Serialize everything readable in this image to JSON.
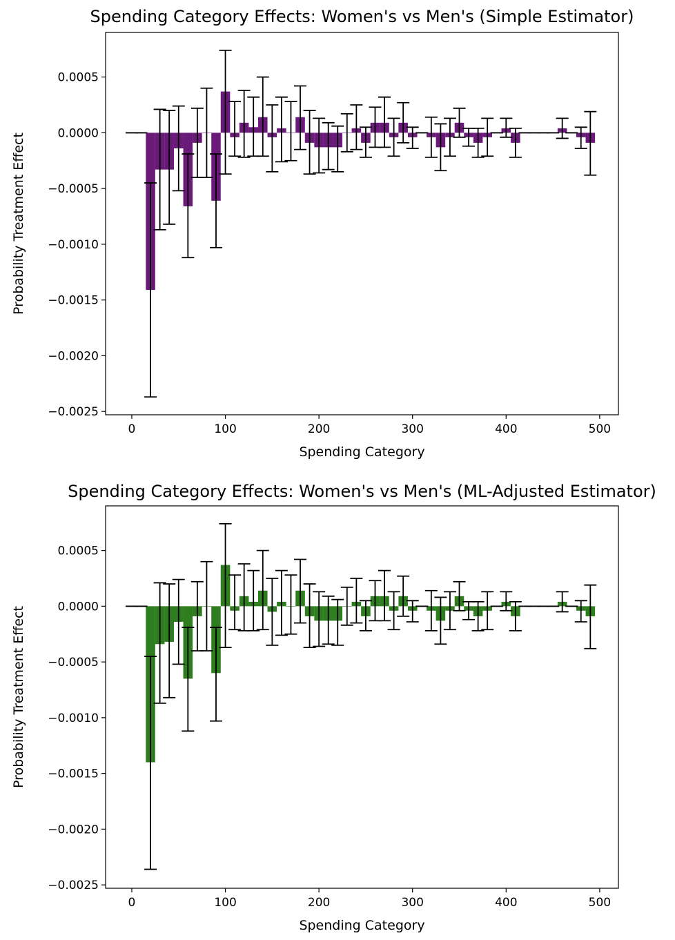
{
  "chart_data": [
    {
      "type": "bar",
      "title": "Spending Category Effects: Women's vs Men's (Simple Estimator)",
      "xlabel": "Spending Category",
      "ylabel": "Probability Treatment Effect",
      "xlim": [
        -28,
        520
      ],
      "ylim": [
        -0.00253,
        0.0009
      ],
      "xticks": [
        0,
        100,
        200,
        300,
        400,
        500
      ],
      "yticks": [
        0.0005,
        0.0,
        -0.0005,
        -0.001,
        -0.0015,
        -0.002,
        -0.0025
      ],
      "ytick_labels": [
        "0.0005",
        "0.0000",
        "−0.0005",
        "−0.0010",
        "−0.0015",
        "−0.0020",
        "−0.0025"
      ],
      "bar_color": "#6a1b7a",
      "bar_width": 10,
      "grid": false,
      "x": [
        0,
        10,
        20,
        30,
        40,
        50,
        60,
        70,
        80,
        90,
        100,
        110,
        120,
        130,
        140,
        150,
        160,
        170,
        180,
        190,
        200,
        210,
        220,
        230,
        240,
        250,
        260,
        270,
        280,
        290,
        300,
        310,
        320,
        330,
        340,
        350,
        360,
        370,
        380,
        390,
        400,
        410,
        420,
        430,
        440,
        450,
        460,
        470,
        480,
        490
      ],
      "values": [
        0,
        0,
        -0.00141,
        -0.00033,
        -0.00033,
        -0.00014,
        -0.00066,
        -9e-05,
        0,
        -0.00061,
        0.00037,
        -4e-05,
        9e-05,
        5e-05,
        0.00014,
        -4e-05,
        4e-05,
        0,
        0.00014,
        -9e-05,
        -0.00013,
        -0.00013,
        -0.00013,
        0,
        4e-05,
        -9e-05,
        9e-05,
        9e-05,
        -4e-05,
        9e-05,
        -4e-05,
        0,
        -4e-05,
        -0.00013,
        -4e-05,
        9e-05,
        -4e-05,
        -9e-05,
        -4e-05,
        0,
        4e-05,
        -9e-05,
        0,
        0,
        0,
        0,
        4e-05,
        0,
        -4e-05,
        -9e-05
      ],
      "err_low": [
        0,
        0,
        -0.00237,
        -0.00087,
        -0.00082,
        -0.00052,
        -0.00112,
        -0.0004,
        -0.0004,
        -0.00103,
        -0.00037,
        -0.00021,
        -0.00022,
        -0.00021,
        -0.00021,
        -0.00035,
        -0.00026,
        -0.00025,
        -0.00015,
        -0.00037,
        -0.00036,
        -0.00033,
        -0.00035,
        -0.00017,
        -0.00015,
        -0.00022,
        -0.00013,
        -0.00013,
        -0.00021,
        -9e-05,
        -0.00014,
        0,
        -0.00022,
        -0.00034,
        -0.00021,
        -4e-05,
        -0.00012,
        -0.00022,
        -0.00021,
        0,
        -4e-05,
        -0.00022,
        0,
        0,
        0,
        0,
        -5e-05,
        0,
        -0.00014,
        -0.00038
      ],
      "err_high": [
        0,
        0,
        -0.00045,
        0.00021,
        0.0002,
        0.00024,
        -0.00019,
        0.00022,
        0.0004,
        -0.00019,
        0.00074,
        0.00028,
        0.00038,
        0.00032,
        0.0005,
        0.00025,
        0.00032,
        0.00028,
        0.00042,
        0.0002,
        0.00013,
        9e-05,
        6e-05,
        0.00017,
        0.00025,
        5e-05,
        0.00023,
        0.00032,
        0.00013,
        0.00027,
        5e-05,
        0,
        0.00014,
        8e-05,
        0.00013,
        0.00022,
        4e-05,
        4e-05,
        0.00013,
        0,
        0.00013,
        4e-05,
        0,
        0,
        0,
        0,
        0.00013,
        0,
        5e-05,
        0.00019
      ]
    },
    {
      "type": "bar",
      "title": "Spending Category Effects: Women's vs Men's (ML-Adjusted Estimator)",
      "xlabel": "Spending Category",
      "ylabel": "Probability Treatment Effect",
      "xlim": [
        -28,
        520
      ],
      "ylim": [
        -0.00253,
        0.0009
      ],
      "xticks": [
        0,
        100,
        200,
        300,
        400,
        500
      ],
      "yticks": [
        0.0005,
        0.0,
        -0.0005,
        -0.001,
        -0.0015,
        -0.002,
        -0.0025
      ],
      "ytick_labels": [
        "0.0005",
        "0.0000",
        "−0.0005",
        "−0.0010",
        "−0.0015",
        "−0.0020",
        "−0.0025"
      ],
      "bar_color": "#2e7d1e",
      "bar_width": 10,
      "grid": false,
      "x": [
        0,
        10,
        20,
        30,
        40,
        50,
        60,
        70,
        80,
        90,
        100,
        110,
        120,
        130,
        140,
        150,
        160,
        170,
        180,
        190,
        200,
        210,
        220,
        230,
        240,
        250,
        260,
        270,
        280,
        290,
        300,
        310,
        320,
        330,
        340,
        350,
        360,
        370,
        380,
        390,
        400,
        410,
        420,
        430,
        440,
        450,
        460,
        470,
        480,
        490
      ],
      "values": [
        0,
        0,
        -0.0014,
        -0.00034,
        -0.00032,
        -0.00014,
        -0.00065,
        -9e-05,
        0,
        -0.0006,
        0.00037,
        -4e-05,
        9e-05,
        4e-05,
        0.00014,
        -5e-05,
        4e-05,
        0,
        0.00014,
        -9e-05,
        -0.00013,
        -0.00013,
        -0.00013,
        0,
        4e-05,
        -9e-05,
        9e-05,
        9e-05,
        -4e-05,
        9e-05,
        -4e-05,
        0,
        -4e-05,
        -0.00013,
        -4e-05,
        9e-05,
        -4e-05,
        -9e-05,
        -4e-05,
        0,
        4e-05,
        -9e-05,
        0,
        0,
        0,
        0,
        4e-05,
        0,
        -4e-05,
        -9e-05
      ],
      "err_low": [
        0,
        0,
        -0.00236,
        -0.00087,
        -0.00082,
        -0.00052,
        -0.00112,
        -0.0004,
        -0.0004,
        -0.00103,
        -0.00037,
        -0.00021,
        -0.00022,
        -0.00022,
        -0.00021,
        -0.00035,
        -0.00026,
        -0.00025,
        -0.00015,
        -0.00037,
        -0.00036,
        -0.00034,
        -0.00035,
        -0.00017,
        -0.00015,
        -0.00022,
        -0.00013,
        -0.00013,
        -0.00021,
        -9e-05,
        -0.00014,
        0,
        -0.00022,
        -0.00034,
        -0.00021,
        -4e-05,
        -0.00012,
        -0.00022,
        -0.00021,
        0,
        -4e-05,
        -0.00022,
        0,
        0,
        0,
        0,
        -5e-05,
        0,
        -0.00014,
        -0.00038
      ],
      "err_high": [
        0,
        0,
        -0.00045,
        0.00021,
        0.0002,
        0.00024,
        -0.00019,
        0.00022,
        0.0004,
        -0.00019,
        0.00074,
        0.00028,
        0.00038,
        0.00032,
        0.0005,
        0.00025,
        0.00032,
        0.00028,
        0.00042,
        0.0002,
        0.00013,
        9e-05,
        6e-05,
        0.00017,
        0.00025,
        5e-05,
        0.00023,
        0.00032,
        0.00013,
        0.00027,
        5e-05,
        0,
        0.00014,
        8e-05,
        0.00013,
        0.00022,
        4e-05,
        4e-05,
        0.00013,
        0,
        0.00013,
        4e-05,
        0,
        0,
        0,
        0,
        0.00013,
        0,
        5e-05,
        0.00019
      ]
    }
  ]
}
